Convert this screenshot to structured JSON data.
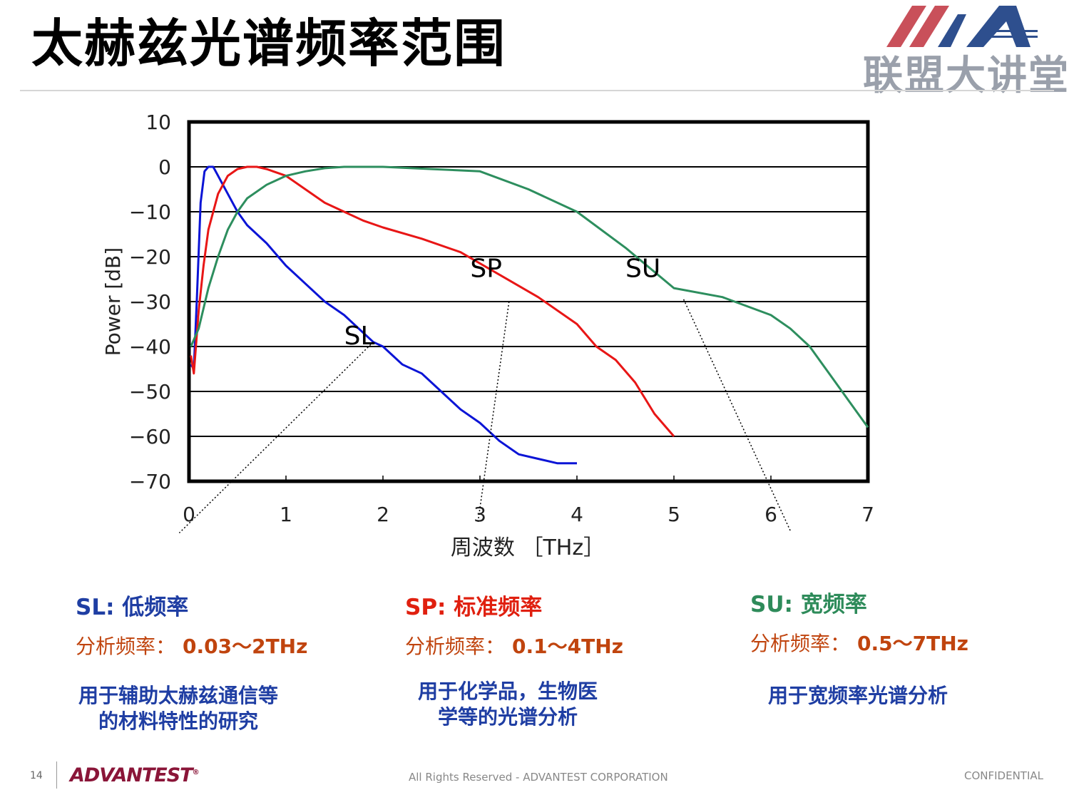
{
  "slide": {
    "title": "太赫兹光谱频率范围",
    "logo_text": "联盟大讲堂",
    "logo_colors": [
      "#c9505a",
      "#2e4f8e"
    ],
    "page_number": "14",
    "brand": "ADVANTEST",
    "brand_mark": "®",
    "copyright": "All Rights Reserved - ADVANTEST CORPORATION",
    "confidential": "CONFIDENTIAL"
  },
  "modes": [
    {
      "head": "SL: 低频率",
      "range_label": "分析频率：",
      "range_value": "0.03～2THz",
      "head_color": "#1f3ea3",
      "range_color": "#c0440e",
      "desc_lines": [
        "用于辅助太赫兹通信等",
        "的材料特性的研究"
      ]
    },
    {
      "head": "SP: 标准频率",
      "range_label": "分析频率：",
      "range_value": "0.1～4THz",
      "head_color": "#e0200f",
      "range_color": "#c0440e",
      "desc_lines": [
        "用于化学品，生物医",
        "学等的光谱分析"
      ]
    },
    {
      "head": "SU: 宽频率",
      "range_label": "分析频率：",
      "range_value": "0.5～7THz",
      "head_color": "#2e8b5a",
      "range_color": "#c0440e",
      "desc_lines": [
        "用于宽频率光谱分析"
      ]
    }
  ],
  "chart_data": {
    "type": "line",
    "xlabel": "周波数 ［THz］",
    "ylabel": "Power [dB]",
    "xlim": [
      0,
      7
    ],
    "ylim": [
      -70,
      10
    ],
    "x_ticks": [
      "0",
      "1",
      "2",
      "3",
      "4",
      "5",
      "6",
      "7"
    ],
    "y_ticks": [
      "10",
      "0",
      "−10",
      "−20",
      "−30",
      "−40",
      "−50",
      "−60",
      "−70"
    ],
    "grid": "horizontal",
    "series": [
      {
        "name": "SL",
        "color": "#0b14d6",
        "x": [
          0.02,
          0.05,
          0.08,
          0.12,
          0.16,
          0.2,
          0.25,
          0.3,
          0.4,
          0.5,
          0.6,
          0.8,
          1.0,
          1.2,
          1.4,
          1.6,
          1.8,
          1.9,
          2.0,
          2.2,
          2.4,
          2.6,
          2.8,
          3.0,
          3.2,
          3.4,
          3.6,
          3.8,
          4.0
        ],
        "y": [
          -44,
          -45,
          -30,
          -8,
          -1,
          0,
          0,
          -2,
          -6,
          -10,
          -13,
          -17,
          -22,
          -26,
          -30,
          -33,
          -37,
          -39,
          -40,
          -44,
          -46,
          -50,
          -54,
          -57,
          -61,
          -64,
          -65,
          -66,
          -66
        ]
      },
      {
        "name": "SP",
        "color": "#e81616",
        "x": [
          0.02,
          0.05,
          0.1,
          0.15,
          0.2,
          0.3,
          0.4,
          0.5,
          0.6,
          0.7,
          0.8,
          1.0,
          1.2,
          1.4,
          1.6,
          1.8,
          2.0,
          2.4,
          2.8,
          3.2,
          3.6,
          4.0,
          4.2,
          4.4,
          4.6,
          4.8,
          5.0
        ],
        "y": [
          -42,
          -46,
          -32,
          -22,
          -14,
          -6,
          -2,
          -0.5,
          0,
          0,
          -0.5,
          -2,
          -5,
          -8,
          -10,
          -12,
          -13.5,
          -16,
          -19,
          -24,
          -29,
          -35,
          -40,
          -43,
          -48,
          -55,
          -60
        ]
      },
      {
        "name": "SU",
        "color": "#2d8e5e",
        "x": [
          0.02,
          0.1,
          0.2,
          0.3,
          0.4,
          0.5,
          0.6,
          0.8,
          1.0,
          1.2,
          1.4,
          1.6,
          1.8,
          2.0,
          2.5,
          3.0,
          3.5,
          4.0,
          4.5,
          5.0,
          5.5,
          6.0,
          6.2,
          6.4,
          6.6,
          6.8,
          7.0
        ],
        "y": [
          -40,
          -36,
          -27,
          -20,
          -14,
          -10,
          -7,
          -4,
          -2,
          -1,
          -0.3,
          0,
          0,
          0,
          -0.5,
          -1,
          -5,
          -10,
          -18,
          -27,
          -29,
          -33,
          -36,
          -40,
          -46,
          -52,
          -58
        ]
      }
    ]
  }
}
